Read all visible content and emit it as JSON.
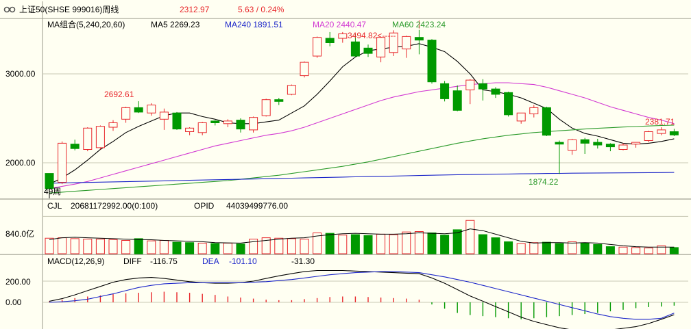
{
  "header": {
    "icon": "link-icon",
    "instrument": "上证50(SHSE 999016)周线",
    "price": "2312.97",
    "change": "5.63 / 0.24%"
  },
  "colors": {
    "up": "#e8262a",
    "down": "#009900",
    "ma5": "#000000",
    "ma20": "#d238d2",
    "ma60": "#2a9a2a",
    "ma240": "#1a24c8",
    "background": "#fffff2",
    "grid": "#c8c8b4"
  },
  "main_panel": {
    "legend": {
      "title": "MA组合(5,240,20,60)",
      "ma5": "MA5 2269.23",
      "ma240": "MA240 1891.51",
      "ma20": "MA20 2440.47",
      "ma60": "MA60 2423.24"
    },
    "yticks": [
      "3000.00",
      "2000.00"
    ],
    "period_label": "49周",
    "annotations": {
      "high": "3494.82<-----",
      "left_peak": "2692.61",
      "low": "1874.22",
      "last": "2381.71"
    }
  },
  "volume_panel": {
    "legend": {
      "title": "CJL",
      "value": "20681172992.00(0:100)",
      "opid": "OPID",
      "opid_value": "44039499776.00"
    },
    "ytick": "840.0亿"
  },
  "macd_panel": {
    "legend": {
      "title": "MACD(12,26,9)",
      "diff": "DIFF",
      "diff_value": "-116.75",
      "dea": "DEA",
      "dea_value": "-101.10",
      "macd_value": "-31.30"
    },
    "yticks": [
      "200.00",
      "0.00"
    ]
  },
  "chart_data": [
    {
      "type": "candlestick",
      "title": "上证50(SHSE 999016)周线",
      "ylim": [
        1700,
        3600
      ],
      "yticks": [
        2000,
        3000
      ],
      "ohlc": [
        [
          1880,
          1880,
          1710,
          1710
        ],
        [
          1780,
          2240,
          1760,
          2220
        ],
        [
          2210,
          2260,
          2140,
          2160
        ],
        [
          2150,
          2400,
          2130,
          2390
        ],
        [
          2170,
          2420,
          2150,
          2410
        ],
        [
          2400,
          2480,
          2360,
          2450
        ],
        [
          2490,
          2630,
          2450,
          2620
        ],
        [
          2620,
          2692.61,
          2560,
          2570
        ],
        [
          2560,
          2670,
          2530,
          2650
        ],
        [
          2490,
          2610,
          2370,
          2570
        ],
        [
          2560,
          2570,
          2370,
          2380
        ],
        [
          2350,
          2400,
          2310,
          2390
        ],
        [
          2340,
          2460,
          2310,
          2450
        ],
        [
          2470,
          2480,
          2420,
          2450
        ],
        [
          2440,
          2490,
          2400,
          2470
        ],
        [
          2480,
          2500,
          2340,
          2380
        ],
        [
          2370,
          2520,
          2340,
          2510
        ],
        [
          2530,
          2720,
          2520,
          2710
        ],
        [
          2710,
          2730,
          2650,
          2690
        ],
        [
          2770,
          2880,
          2760,
          2870
        ],
        [
          2980,
          3140,
          2960,
          3130
        ],
        [
          3200,
          3420,
          3180,
          3410
        ],
        [
          3400,
          3470,
          3310,
          3350
        ],
        [
          3400,
          3470,
          3350,
          3450
        ],
        [
          3360,
          3450,
          3190,
          3200
        ],
        [
          3290,
          3330,
          3190,
          3230
        ],
        [
          3190,
          3420,
          3130,
          3410
        ],
        [
          3240,
          3490,
          3200,
          3460
        ],
        [
          3280,
          3430,
          3180,
          3420
        ],
        [
          3410,
          3494.82,
          3220,
          3380
        ],
        [
          3380,
          3390,
          2890,
          2910
        ],
        [
          2890,
          2920,
          2690,
          2720
        ],
        [
          2810,
          2870,
          2580,
          2590
        ],
        [
          2820,
          2940,
          2660,
          2930
        ],
        [
          2890,
          2940,
          2700,
          2830
        ],
        [
          2830,
          2850,
          2730,
          2770
        ],
        [
          2790,
          2800,
          2520,
          2540
        ],
        [
          2470,
          2560,
          2440,
          2560
        ],
        [
          2550,
          2650,
          2510,
          2620
        ],
        [
          2620,
          2630,
          2300,
          2310
        ],
        [
          2230,
          2250,
          1874.22,
          2210
        ],
        [
          2140,
          2270,
          2090,
          2260
        ],
        [
          2260,
          2280,
          2100,
          2220
        ],
        [
          2230,
          2270,
          2160,
          2200
        ],
        [
          2210,
          2220,
          2130,
          2180
        ],
        [
          2150,
          2220,
          2140,
          2200
        ],
        [
          2210,
          2230,
          2170,
          2230
        ],
        [
          2250,
          2360,
          2230,
          2350
        ],
        [
          2330,
          2400,
          2310,
          2370
        ],
        [
          2350,
          2381.71,
          2300,
          2312.97
        ]
      ],
      "series": [
        {
          "name": "MA5",
          "values": [
            1760,
            1830,
            1920,
            2030,
            2150,
            2240,
            2340,
            2410,
            2470,
            2530,
            2560,
            2560,
            2520,
            2490,
            2450,
            2440,
            2440,
            2460,
            2480,
            2560,
            2640,
            2770,
            2920,
            3080,
            3190,
            3260,
            3280,
            3300,
            3310,
            3340,
            3300,
            3250,
            3140,
            3000,
            2820,
            2800,
            2770,
            2730,
            2670,
            2610,
            2490,
            2390,
            2330,
            2300,
            2260,
            2220,
            2210,
            2220,
            2240,
            2270
          ]
        },
        {
          "name": "MA20",
          "values": [
            1710,
            1735,
            1760,
            1790,
            1830,
            1870,
            1910,
            1950,
            1990,
            2030,
            2070,
            2110,
            2150,
            2190,
            2220,
            2250,
            2280,
            2310,
            2330,
            2360,
            2400,
            2450,
            2500,
            2550,
            2600,
            2650,
            2700,
            2740,
            2770,
            2800,
            2820,
            2840,
            2860,
            2880,
            2890,
            2900,
            2900,
            2890,
            2880,
            2850,
            2810,
            2770,
            2730,
            2680,
            2630,
            2590,
            2550,
            2510,
            2480,
            2440.47
          ]
        },
        {
          "name": "MA60",
          "values": [
            1660,
            1670,
            1680,
            1690,
            1700,
            1710,
            1720,
            1730,
            1740,
            1750,
            1760,
            1770,
            1780,
            1790,
            1800,
            1815,
            1830,
            1845,
            1860,
            1880,
            1900,
            1920,
            1940,
            1960,
            1985,
            2010,
            2040,
            2070,
            2100,
            2130,
            2160,
            2190,
            2220,
            2245,
            2270,
            2290,
            2310,
            2325,
            2340,
            2350,
            2360,
            2370,
            2380,
            2388,
            2395,
            2402,
            2408,
            2414,
            2419,
            2423.24
          ]
        },
        {
          "name": "MA240",
          "values": [
            1770,
            1773,
            1776,
            1779,
            1782,
            1785,
            1788,
            1791,
            1794,
            1797,
            1800,
            1803,
            1806,
            1809,
            1812,
            1815,
            1818,
            1821,
            1824,
            1827,
            1830,
            1833,
            1836,
            1839,
            1842,
            1845,
            1848,
            1851,
            1854,
            1857,
            1860,
            1863,
            1866,
            1868,
            1870,
            1872,
            1874,
            1876,
            1878,
            1880,
            1881,
            1883,
            1884,
            1885,
            1886,
            1887,
            1888,
            1889,
            1890,
            1891.51
          ]
        }
      ]
    },
    {
      "type": "bar",
      "title": "CJL",
      "values": [
        350,
        360,
        340,
        330,
        330,
        320,
        300,
        340,
        290,
        300,
        260,
        250,
        240,
        230,
        240,
        220,
        330,
        360,
        350,
        340,
        330,
        470,
        460,
        420,
        430,
        410,
        440,
        430,
        490,
        500,
        470,
        420,
        540,
        750,
        430,
        360,
        270,
        230,
        250,
        260,
        230,
        270,
        240,
        210,
        160,
        150,
        140,
        130,
        180,
        140
      ],
      "up": [
        true,
        true,
        true,
        true,
        true,
        true,
        true,
        false,
        true,
        true,
        false,
        false,
        true,
        false,
        true,
        false,
        true,
        true,
        true,
        true,
        true,
        true,
        false,
        true,
        false,
        false,
        true,
        true,
        true,
        true,
        false,
        false,
        false,
        true,
        false,
        false,
        false,
        true,
        true,
        false,
        false,
        true,
        false,
        false,
        false,
        true,
        true,
        true,
        true,
        false
      ],
      "series": [
        {
          "name": "volume MA",
          "values": [
            320,
            360,
            370,
            360,
            350,
            340,
            330,
            320,
            315,
            300,
            290,
            280,
            270,
            250,
            245,
            240,
            270,
            300,
            330,
            350,
            360,
            400,
            430,
            450,
            460,
            450,
            440,
            440,
            450,
            470,
            460,
            450,
            470,
            560,
            520,
            440,
            360,
            280,
            240,
            250,
            250,
            240,
            250,
            240,
            210,
            180,
            160,
            150,
            150,
            150
          ]
        }
      ]
    },
    {
      "type": "bar",
      "title": "MACD(12,26,9)",
      "ylim": [
        -350,
        300
      ],
      "yticks": [
        200,
        0
      ],
      "values": [
        10,
        25,
        40,
        55,
        65,
        80,
        85,
        90,
        95,
        100,
        95,
        90,
        80,
        70,
        55,
        45,
        35,
        25,
        20,
        20,
        30,
        40,
        50,
        55,
        55,
        50,
        45,
        40,
        35,
        25,
        -20,
        -60,
        -100,
        -120,
        -130,
        -140,
        -150,
        -160,
        -150,
        -140,
        -130,
        -120,
        -110,
        -100,
        -85,
        -70,
        -55,
        -45,
        -40,
        -31.3
      ],
      "series": [
        {
          "name": "DIFF",
          "values": [
            10,
            35,
            70,
            110,
            150,
            190,
            215,
            230,
            235,
            225,
            210,
            195,
            185,
            180,
            180,
            185,
            200,
            225,
            250,
            270,
            290,
            300,
            300,
            300,
            295,
            290,
            285,
            280,
            275,
            270,
            230,
            180,
            120,
            60,
            10,
            -40,
            -90,
            -140,
            -180,
            -210,
            -240,
            -260,
            -270,
            -270,
            -260,
            -245,
            -230,
            -200,
            -160,
            -116.75
          ]
        },
        {
          "name": "DEA",
          "values": [
            0,
            5,
            15,
            30,
            55,
            80,
            110,
            140,
            160,
            175,
            180,
            185,
            185,
            185,
            185,
            185,
            190,
            195,
            205,
            215,
            230,
            245,
            260,
            270,
            280,
            285,
            290,
            290,
            285,
            280,
            260,
            240,
            215,
            190,
            160,
            130,
            100,
            70,
            40,
            10,
            -20,
            -50,
            -80,
            -110,
            -135,
            -150,
            -160,
            -160,
            -150,
            -101.1
          ]
        }
      ]
    }
  ]
}
